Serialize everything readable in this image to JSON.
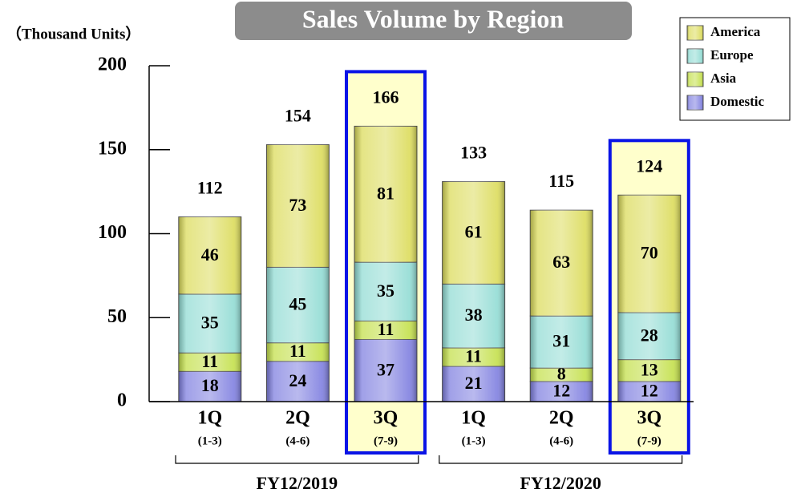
{
  "chart_data": {
    "type": "stacked_bar",
    "title": "Sales Volume by Region",
    "y_axis_label": "（Thousand Units）",
    "categories": [
      "1Q",
      "2Q",
      "3Q",
      "1Q",
      "2Q",
      "3Q"
    ],
    "category_periods": [
      "(1-3)",
      "(4-6)",
      "(7-9)",
      "(1-3)",
      "(4-6)",
      "(7-9)"
    ],
    "groups": [
      "FY12/2019",
      "FY12/2020"
    ],
    "series": [
      {
        "name": "Domestic",
        "color": "#8080e0",
        "values": [
          18,
          24,
          37,
          21,
          12,
          12
        ]
      },
      {
        "name": "Asia",
        "color": "#c4e04c",
        "values": [
          11,
          11,
          11,
          11,
          8,
          13
        ]
      },
      {
        "name": "Europe",
        "color": "#92dcd4",
        "values": [
          35,
          45,
          35,
          38,
          31,
          28
        ]
      },
      {
        "name": "America",
        "color": "#dcdc5c",
        "values": [
          46,
          73,
          81,
          61,
          63,
          70
        ]
      }
    ],
    "totals": [
      112,
      154,
      166,
      133,
      115,
      124
    ],
    "highlight": [
      2,
      5
    ],
    "ylim": [
      0,
      200
    ],
    "yticks": [
      0,
      50,
      100,
      150,
      200
    ],
    "legend": "top-right"
  }
}
